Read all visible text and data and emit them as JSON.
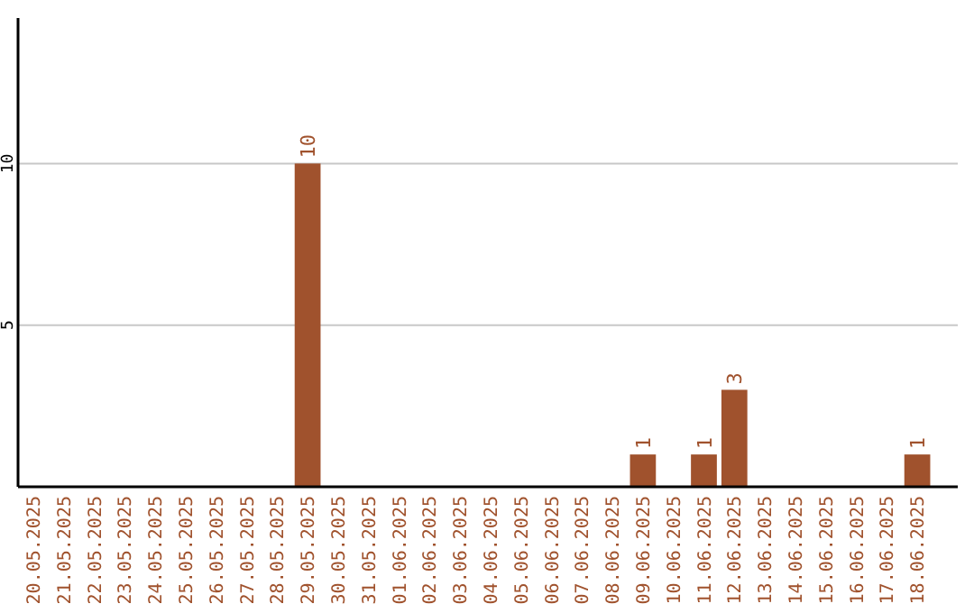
{
  "chart_data": {
    "type": "bar",
    "categories": [
      "20.05.2025",
      "21.05.2025",
      "22.05.2025",
      "23.05.2025",
      "24.05.2025",
      "25.05.2025",
      "26.05.2025",
      "27.05.2025",
      "28.05.2025",
      "29.05.2025",
      "30.05.2025",
      "31.05.2025",
      "01.06.2025",
      "02.06.2025",
      "03.06.2025",
      "04.06.2025",
      "05.06.2025",
      "06.06.2025",
      "07.06.2025",
      "08.06.2025",
      "09.06.2025",
      "10.06.2025",
      "11.06.2025",
      "12.06.2025",
      "13.06.2025",
      "14.06.2025",
      "15.06.2025",
      "16.06.2025",
      "17.06.2025",
      "18.06.2025"
    ],
    "values": [
      0,
      0,
      0,
      0,
      0,
      0,
      0,
      0,
      0,
      10,
      0,
      0,
      0,
      0,
      0,
      0,
      0,
      0,
      0,
      0,
      1,
      0,
      1,
      3,
      0,
      0,
      0,
      0,
      0,
      1
    ],
    "value_labels": [
      null,
      null,
      null,
      null,
      null,
      null,
      null,
      null,
      null,
      "10",
      null,
      null,
      null,
      null,
      null,
      null,
      null,
      null,
      null,
      null,
      "1",
      null,
      "1",
      "3",
      null,
      null,
      null,
      null,
      null,
      "1"
    ],
    "color": "#a0522d",
    "ylim": [
      0,
      14.5
    ],
    "yticks": [
      5,
      10
    ],
    "grid": "y"
  }
}
